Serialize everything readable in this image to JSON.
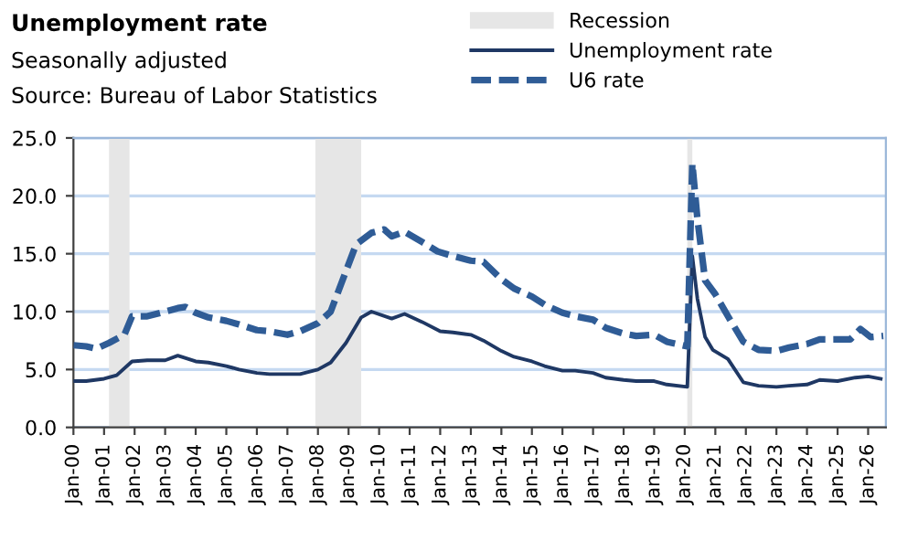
{
  "chart_data": {
    "type": "line",
    "title": "Unemployment rate",
    "subtitle": "Seasonally adjusted",
    "annotations": [
      "Source: Bureau of Labor Statistics"
    ],
    "x": [
      "2000-01",
      "2000-06",
      "2001-01",
      "2001-06",
      "2001-12",
      "2002-06",
      "2003-01",
      "2003-06",
      "2004-01",
      "2004-06",
      "2005-01",
      "2005-06",
      "2006-01",
      "2006-06",
      "2007-01",
      "2007-06",
      "2008-01",
      "2008-06",
      "2008-12",
      "2009-06",
      "2009-10",
      "2010-06",
      "2010-11",
      "2011-06",
      "2012-01",
      "2012-06",
      "2013-01",
      "2013-06",
      "2014-01",
      "2014-06",
      "2015-01",
      "2015-06",
      "2016-01",
      "2016-06",
      "2017-01",
      "2017-06",
      "2018-01",
      "2018-06",
      "2019-01",
      "2019-06",
      "2020-02",
      "2020-04",
      "2020-06",
      "2020-09",
      "2020-12",
      "2021-06",
      "2021-12",
      "2022-06",
      "2023-01",
      "2023-06",
      "2024-01",
      "2024-06",
      "2025-01",
      "2025-08",
      "2026-01",
      "2026-06"
    ],
    "series": [
      {
        "name": "Unemployment rate",
        "color": "#1f3864",
        "line_style": "solid",
        "values": [
          4.0,
          4.0,
          4.2,
          4.5,
          5.7,
          5.8,
          5.8,
          6.2,
          5.7,
          5.6,
          5.3,
          5.0,
          4.7,
          4.6,
          4.6,
          4.6,
          5.0,
          5.6,
          7.3,
          9.5,
          10.0,
          9.4,
          9.8,
          9.1,
          8.3,
          8.2,
          8.0,
          7.5,
          6.6,
          6.1,
          5.7,
          5.3,
          4.9,
          4.9,
          4.7,
          4.3,
          4.1,
          4.0,
          4.0,
          3.7,
          3.5,
          14.8,
          11.1,
          7.8,
          6.7,
          5.9,
          3.9,
          3.6,
          3.5,
          3.6,
          3.7,
          4.1,
          4.0,
          4.3,
          4.4,
          4.2
        ]
      },
      {
        "name": "U6 rate",
        "color": "#2f5c96",
        "line_style": "dashed",
        "x": [
          "2000-01",
          "2000-06",
          "2000-10",
          "2001-03",
          "2001-09",
          "2001-12",
          "2002-06",
          "2003-01",
          "2003-06",
          "2003-09",
          "2004-01",
          "2004-06",
          "2005-01",
          "2005-06",
          "2006-01",
          "2006-06",
          "2007-01",
          "2007-06",
          "2008-01",
          "2008-06",
          "2008-12",
          "2009-04",
          "2009-10",
          "2010-03",
          "2010-06",
          "2010-11",
          "2011-06",
          "2011-12",
          "2012-06",
          "2013-01",
          "2013-06",
          "2014-01",
          "2014-06",
          "2015-01",
          "2015-06",
          "2016-01",
          "2016-06",
          "2017-01",
          "2017-06",
          "2018-01",
          "2018-06",
          "2019-01",
          "2019-06",
          "2020-02",
          "2020-04",
          "2020-06",
          "2020-09",
          "2021-01",
          "2021-06",
          "2021-12",
          "2022-06",
          "2023-01",
          "2023-06",
          "2024-01",
          "2024-06",
          "2025-01",
          "2025-06",
          "2025-10",
          "2026-02",
          "2026-07"
        ],
        "values": [
          7.1,
          7.0,
          6.8,
          7.3,
          8.0,
          9.6,
          9.6,
          10.0,
          10.3,
          10.4,
          9.9,
          9.5,
          9.2,
          8.9,
          8.4,
          8.3,
          8.0,
          8.3,
          9.0,
          10.0,
          13.5,
          15.8,
          16.8,
          17.1,
          16.5,
          16.9,
          16.0,
          15.2,
          14.8,
          14.4,
          14.3,
          12.8,
          12.0,
          11.3,
          10.6,
          9.9,
          9.6,
          9.3,
          8.6,
          8.1,
          7.9,
          8.0,
          7.4,
          7.0,
          22.8,
          18.0,
          12.7,
          11.5,
          9.6,
          7.4,
          6.7,
          6.6,
          6.9,
          7.2,
          7.6,
          7.6,
          7.6,
          8.5,
          7.8,
          7.9
        ]
      }
    ],
    "bands": [
      {
        "axis": "x",
        "from": "2001-03",
        "to": "2001-11",
        "label": "Recession",
        "color": "#e6e6e6"
      },
      {
        "axis": "x",
        "from": "2007-12",
        "to": "2009-06",
        "color": "#e6e6e6"
      },
      {
        "axis": "x",
        "from": "2020-02",
        "to": "2020-04",
        "color": "#e6e6e6"
      }
    ],
    "xlim": [
      "2000-01",
      "2026-08"
    ],
    "xticks": [
      {
        "value": "2000-01",
        "label": "Jan-00"
      },
      {
        "value": "2001-01",
        "label": "Jan-01"
      },
      {
        "value": "2002-01",
        "label": "Jan-02"
      },
      {
        "value": "2003-01",
        "label": "Jan-03"
      },
      {
        "value": "2004-01",
        "label": "Jan-04"
      },
      {
        "value": "2005-01",
        "label": "Jan-05"
      },
      {
        "value": "2006-01",
        "label": "Jan-06"
      },
      {
        "value": "2007-01",
        "label": "Jan-07"
      },
      {
        "value": "2008-01",
        "label": "Jan-08"
      },
      {
        "value": "2009-01",
        "label": "Jan-09"
      },
      {
        "value": "2010-01",
        "label": "Jan-10"
      },
      {
        "value": "2011-01",
        "label": "Jan-11"
      },
      {
        "value": "2012-01",
        "label": "Jan-12"
      },
      {
        "value": "2013-01",
        "label": "Jan-13"
      },
      {
        "value": "2014-01",
        "label": "Jan-14"
      },
      {
        "value": "2015-01",
        "label": "Jan-15"
      },
      {
        "value": "2016-01",
        "label": "Jan-16"
      },
      {
        "value": "2017-01",
        "label": "Jan-17"
      },
      {
        "value": "2018-01",
        "label": "Jan-18"
      },
      {
        "value": "2019-01",
        "label": "Jan-19"
      },
      {
        "value": "2020-01",
        "label": "Jan-20"
      },
      {
        "value": "2021-01",
        "label": "Jan-21"
      },
      {
        "value": "2022-01",
        "label": "Jan-22"
      },
      {
        "value": "2023-01",
        "label": "Jan-23"
      },
      {
        "value": "2024-01",
        "label": "Jan-24"
      },
      {
        "value": "2025-01",
        "label": "Jan-25"
      },
      {
        "value": "2026-01",
        "label": "Jan-26"
      }
    ],
    "ylim": [
      0,
      25
    ],
    "yticks": [
      {
        "value": 0,
        "label": "0.0"
      },
      {
        "value": 5,
        "label": "5.0"
      },
      {
        "value": 10,
        "label": "10.0"
      },
      {
        "value": 15,
        "label": "15.0"
      },
      {
        "value": 20,
        "label": "20.0"
      },
      {
        "value": 25,
        "label": "25.0"
      }
    ],
    "grid": "y",
    "legend": "top"
  }
}
